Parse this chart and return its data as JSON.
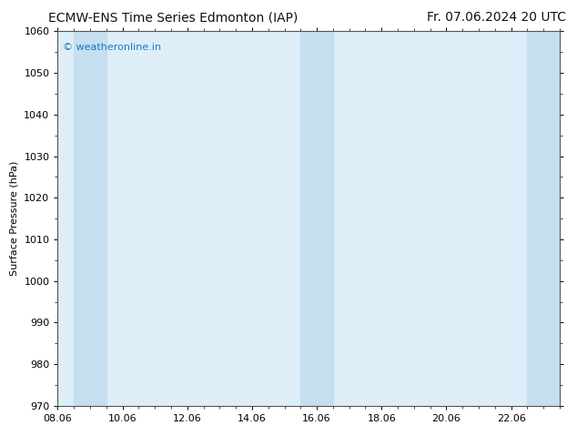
{
  "title_left": "ECMW-ENS Time Series Edmonton (IAP)",
  "title_right": "Fr. 07.06.2024 20 UTC",
  "ylabel": "Surface Pressure (hPa)",
  "ylim": [
    970,
    1060
  ],
  "yticks": [
    970,
    980,
    990,
    1000,
    1010,
    1020,
    1030,
    1040,
    1050,
    1060
  ],
  "xtick_labels": [
    "08.06",
    "10.06",
    "12.06",
    "14.06",
    "16.06",
    "18.06",
    "20.06",
    "22.06"
  ],
  "xtick_positions": [
    0.0,
    2.0,
    4.0,
    6.0,
    8.0,
    10.0,
    12.0,
    14.0
  ],
  "xlim": [
    0.0,
    15.5
  ],
  "background_color": "#ffffff",
  "plot_bg_color": "#ddeef8",
  "shaded_bands": [
    {
      "x_start": 0.5,
      "x_end": 1.5,
      "color": "#c5dff0"
    },
    {
      "x_start": 7.5,
      "x_end": 8.5,
      "color": "#c5dff0"
    },
    {
      "x_start": 14.5,
      "x_end": 15.5,
      "color": "#c5dff0"
    }
  ],
  "watermark_text": "© weatheronline.in",
  "watermark_color": "#1a7abf",
  "title_fontsize": 10,
  "ylabel_fontsize": 8,
  "tick_fontsize": 8,
  "spine_color": "#555555"
}
